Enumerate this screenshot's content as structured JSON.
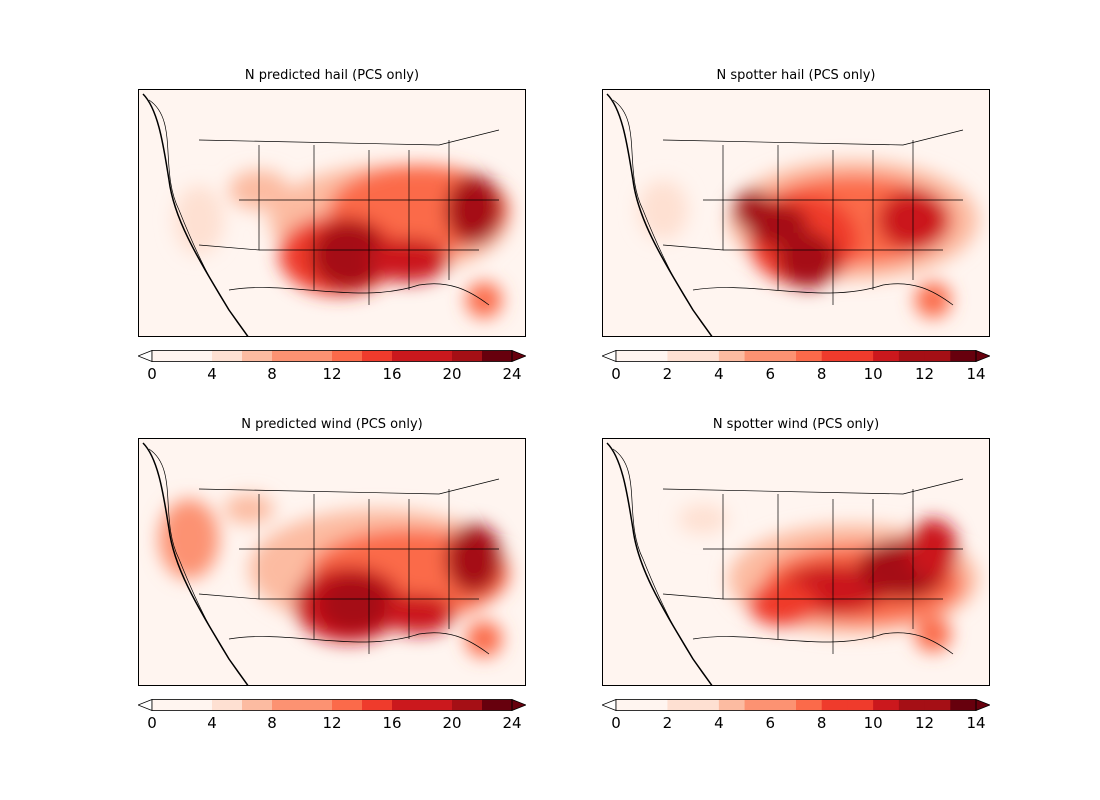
{
  "panels": [
    {
      "title": "N predicted hail (PCS only)",
      "colorbar": {
        "ticks": [
          "0",
          "4",
          "8",
          "12",
          "16",
          "20",
          "24"
        ],
        "min": 0,
        "max": 24,
        "levels": 12,
        "extend": "both"
      }
    },
    {
      "title": "N spotter hail (PCS only)",
      "colorbar": {
        "ticks": [
          "0",
          "2",
          "4",
          "6",
          "8",
          "10",
          "12",
          "14"
        ],
        "min": 0,
        "max": 14,
        "levels": 14,
        "extend": "both"
      }
    },
    {
      "title": "N predicted wind (PCS only)",
      "colorbar": {
        "ticks": [
          "0",
          "4",
          "8",
          "12",
          "16",
          "20",
          "24"
        ],
        "min": 0,
        "max": 24,
        "levels": 12,
        "extend": "both"
      }
    },
    {
      "title": "N spotter wind (PCS only)",
      "colorbar": {
        "ticks": [
          "0",
          "2",
          "4",
          "6",
          "8",
          "10",
          "12",
          "14"
        ],
        "min": 0,
        "max": 14,
        "levels": 14,
        "extend": "both"
      }
    }
  ],
  "colormap": [
    "#fff5f0",
    "#fee0d2",
    "#fcbba1",
    "#fc9272",
    "#fb6a4a",
    "#ef3b2c",
    "#cb181d",
    "#a50f15",
    "#67000d"
  ]
}
